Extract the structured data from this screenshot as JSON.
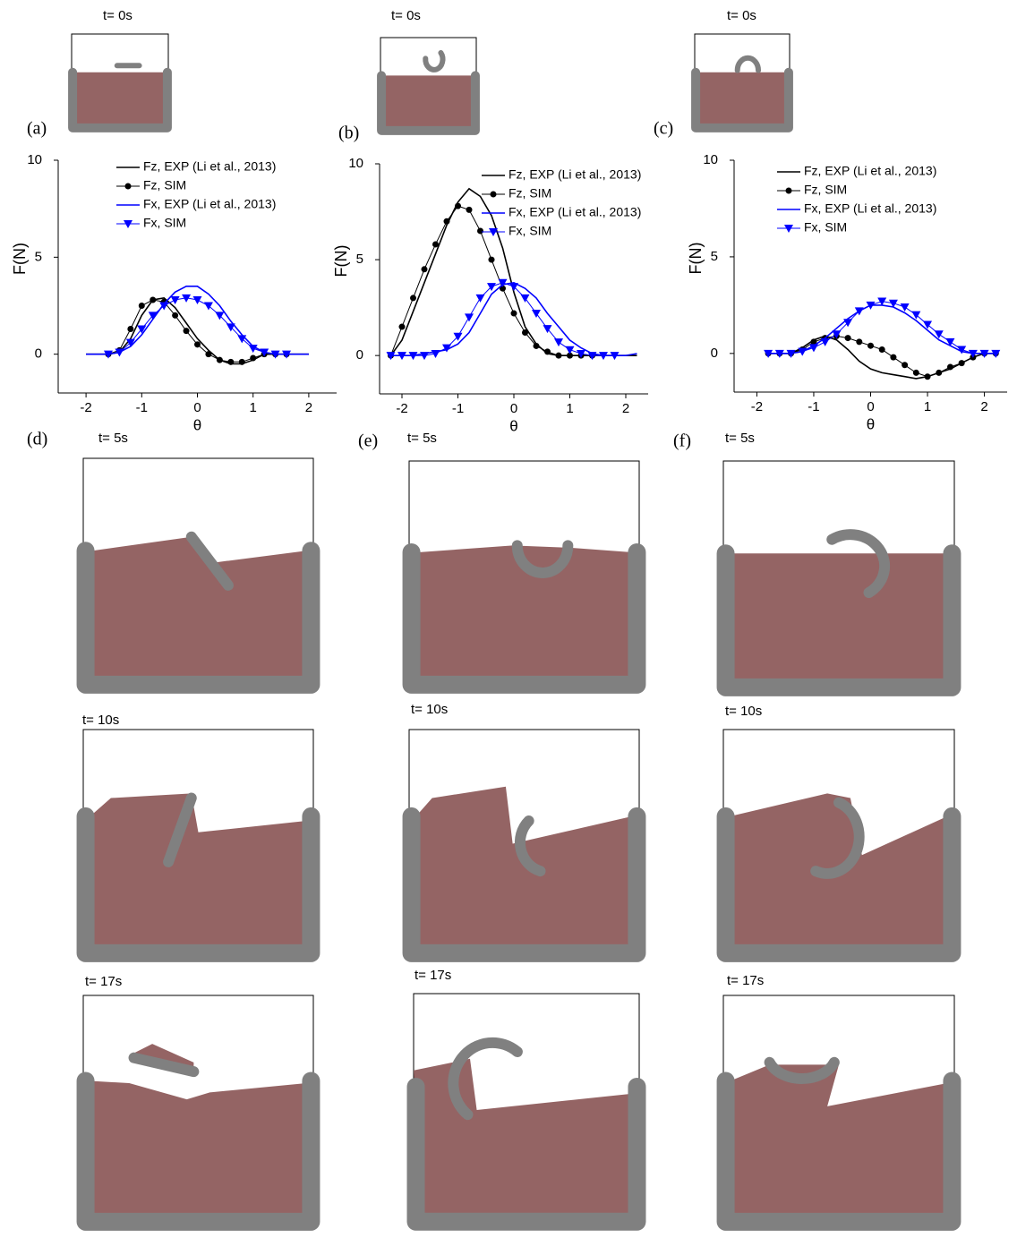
{
  "panel_labels": [
    "(a)",
    "(b)",
    "(c)",
    "(d)",
    "(e)",
    "(f)"
  ],
  "snapshots": [
    {
      "time": "t= 0s"
    },
    {
      "time": "t= 0s"
    },
    {
      "time": "t= 0s"
    },
    {
      "time": "t= 5s"
    },
    {
      "time": "t= 5s"
    },
    {
      "time": "t= 5s"
    },
    {
      "time": "t= 10s"
    },
    {
      "time": "t= 10s"
    },
    {
      "time": "t= 10s"
    },
    {
      "time": "t= 17s"
    },
    {
      "time": "t= 17s"
    },
    {
      "time": "t= 17s"
    }
  ],
  "chart_data": [
    {
      "type": "line",
      "xlabel": "θ",
      "ylabel": "F(N)",
      "xlim": [
        -2.5,
        2.5
      ],
      "xticks": [
        -2,
        -1,
        0,
        1,
        2
      ],
      "ylim": [
        -2,
        10
      ],
      "yticks": [
        0,
        5,
        10
      ],
      "grid": false,
      "legend": "upper right",
      "x": [
        -2,
        -1.8,
        -1.6,
        -1.4,
        -1.2,
        -1,
        -0.8,
        -0.6,
        -0.4,
        -0.2,
        0,
        0.2,
        0.4,
        0.6,
        0.8,
        1,
        1.2,
        1.4,
        1.6,
        1.8,
        2
      ],
      "series": [
        {
          "name": "Fz, EXP (Li et al., 2013)",
          "color": "#000000",
          "marker": "none",
          "values": [
            0,
            0,
            0,
            0.1,
            0.8,
            2.0,
            2.8,
            2.9,
            2.4,
            1.6,
            0.8,
            0.2,
            -0.3,
            -0.5,
            -0.5,
            -0.3,
            0,
            0,
            0,
            0,
            0
          ]
        },
        {
          "name": "Fz, SIM",
          "color": "#000000",
          "marker": "circle",
          "values": [
            null,
            null,
            0,
            0.2,
            1.3,
            2.5,
            2.8,
            2.7,
            2.0,
            1.2,
            0.5,
            0,
            -0.3,
            -0.4,
            -0.4,
            -0.2,
            0,
            0,
            0,
            null,
            null
          ]
        },
        {
          "name": "Fx, EXP (Li et al., 2013)",
          "color": "#0000ff",
          "marker": "none",
          "values": [
            0,
            0,
            0,
            0.1,
            0.4,
            1.0,
            1.8,
            2.6,
            3.2,
            3.5,
            3.5,
            3.1,
            2.5,
            1.7,
            1.0,
            0.4,
            0.1,
            0,
            0,
            0,
            0
          ]
        },
        {
          "name": "Fx, SIM",
          "color": "#0000ff",
          "marker": "triangle",
          "values": [
            null,
            null,
            0,
            0.1,
            0.6,
            1.3,
            2.0,
            2.5,
            2.8,
            2.9,
            2.8,
            2.5,
            2.0,
            1.4,
            0.8,
            0.3,
            0.1,
            0,
            0,
            null,
            null
          ]
        }
      ]
    },
    {
      "type": "line",
      "xlabel": "θ",
      "ylabel": "F(N)",
      "xlim": [
        -2.4,
        2.4
      ],
      "xticks": [
        -2,
        -1,
        0,
        1,
        2
      ],
      "ylim": [
        -2,
        10
      ],
      "yticks": [
        0,
        5,
        10
      ],
      "grid": false,
      "legend": "upper right",
      "x": [
        -2.2,
        -2,
        -1.8,
        -1.6,
        -1.4,
        -1.2,
        -1,
        -0.8,
        -0.6,
        -0.4,
        -0.2,
        0,
        0.2,
        0.4,
        0.6,
        0.8,
        1,
        1.2,
        1.4,
        1.6,
        1.8,
        2,
        2.2
      ],
      "series": [
        {
          "name": "Fz, EXP (Li et al., 2013)",
          "color": "#000000",
          "marker": "none",
          "values": [
            0,
            0.8,
            2.3,
            3.8,
            5.3,
            6.8,
            8.0,
            8.7,
            8.3,
            7.3,
            5.6,
            3.3,
            1.5,
            0.6,
            0.1,
            0,
            0,
            0,
            0,
            0,
            0,
            0,
            0
          ]
        },
        {
          "name": "Fz, SIM",
          "color": "#000000",
          "marker": "circle",
          "values": [
            0,
            1.5,
            3.0,
            4.5,
            5.8,
            7.0,
            7.8,
            7.6,
            6.5,
            5.0,
            3.5,
            2.2,
            1.2,
            0.5,
            0.2,
            0,
            0,
            0,
            0,
            null,
            null,
            null,
            null
          ]
        },
        {
          "name": "Fx, EXP (Li et al., 2013)",
          "color": "#0000ff",
          "marker": "none",
          "values": [
            0,
            0,
            0,
            0.1,
            0.2,
            0.3,
            0.6,
            1.2,
            2.2,
            3.2,
            3.7,
            3.8,
            3.5,
            3.0,
            2.2,
            1.5,
            0.8,
            0.4,
            0.1,
            0,
            0,
            0,
            0.1
          ]
        },
        {
          "name": "Fx, SIM",
          "color": "#0000ff",
          "marker": "triangle",
          "values": [
            0,
            0,
            0,
            0,
            0.1,
            0.4,
            1.0,
            2.0,
            3.0,
            3.6,
            3.8,
            3.6,
            3.0,
            2.2,
            1.4,
            0.7,
            0.3,
            0.1,
            0,
            0,
            0,
            null,
            null
          ]
        }
      ]
    },
    {
      "type": "line",
      "xlabel": "θ",
      "ylabel": "F(N)",
      "xlim": [
        -2.4,
        2.4
      ],
      "xticks": [
        -2,
        -1,
        0,
        1,
        2
      ],
      "ylim": [
        -2,
        10
      ],
      "yticks": [
        0,
        5,
        10
      ],
      "grid": false,
      "legend": "upper right",
      "x": [
        -1.8,
        -1.6,
        -1.4,
        -1.2,
        -1,
        -0.8,
        -0.6,
        -0.4,
        -0.2,
        0,
        0.2,
        0.4,
        0.6,
        0.8,
        1,
        1.2,
        1.4,
        1.6,
        1.8,
        2,
        2.2
      ],
      "series": [
        {
          "name": "Fz, EXP (Li et al., 2013)",
          "color": "#000000",
          "marker": "none",
          "values": [
            0,
            0,
            0,
            0.3,
            0.7,
            0.9,
            0.7,
            0.2,
            -0.4,
            -0.8,
            -1.0,
            -1.1,
            -1.2,
            -1.3,
            -1.2,
            -1.0,
            -0.8,
            -0.5,
            -0.2,
            0,
            0
          ]
        },
        {
          "name": "Fz, SIM",
          "color": "#000000",
          "marker": "circle",
          "values": [
            0,
            0,
            0,
            0.2,
            0.6,
            0.8,
            0.9,
            0.8,
            0.6,
            0.4,
            0.2,
            -0.2,
            -0.6,
            -1.0,
            -1.2,
            -1.0,
            -0.7,
            -0.5,
            -0.2,
            0,
            0
          ]
        },
        {
          "name": "Fx, EXP (Li et al., 2013)",
          "color": "#0000ff",
          "marker": "none",
          "values": [
            0,
            0,
            0,
            0.1,
            0.4,
            0.8,
            1.3,
            1.8,
            2.2,
            2.5,
            2.5,
            2.4,
            2.1,
            1.7,
            1.2,
            0.7,
            0.4,
            0.1,
            0,
            0,
            0
          ]
        },
        {
          "name": "Fx, SIM",
          "color": "#0000ff",
          "marker": "triangle",
          "values": [
            0,
            0,
            0,
            0.1,
            0.3,
            0.6,
            1.0,
            1.6,
            2.2,
            2.5,
            2.7,
            2.6,
            2.4,
            2.0,
            1.5,
            1.0,
            0.6,
            0.2,
            0,
            0,
            0
          ]
        }
      ]
    }
  ]
}
